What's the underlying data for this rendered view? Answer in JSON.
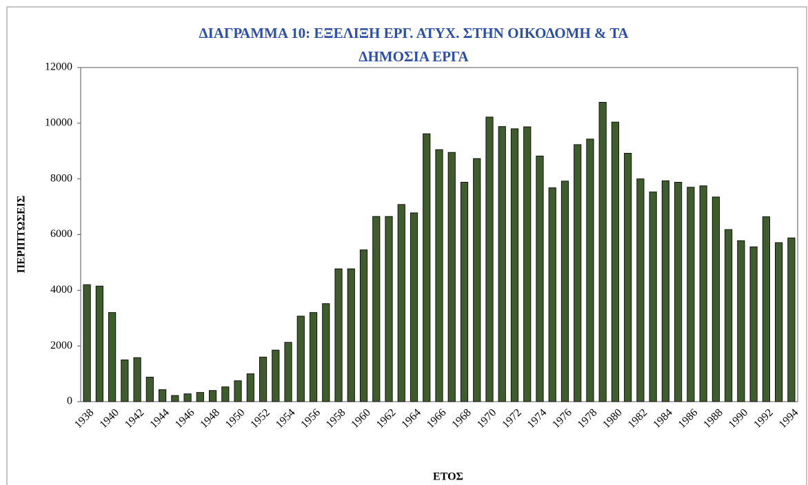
{
  "chart_data": {
    "type": "bar",
    "title": [
      "ΔΙΑΓΡΑΜΜΑ 10: ΕΞΕΛΙΞΗ ΕΡΓ. ΑΤΥΧ. ΣΤΗΝ ΟΙΚΟΔΟΜΗ & ΤΑ",
      "ΔΗΜΟΣΙΑ ΕΡΓΑ"
    ],
    "x_label": "ΕΤΟΣ",
    "y_label": "ΠΕΡΙΠΤΩΣΕΙΣ",
    "categories": [
      "1938",
      null,
      "1940",
      null,
      "1942",
      null,
      "1944",
      null,
      "1946",
      null,
      "1948",
      null,
      "1950",
      null,
      "1952",
      null,
      "1954",
      null,
      "1956",
      null,
      "1958",
      null,
      "1960",
      null,
      "1962",
      null,
      "1964",
      null,
      "1966",
      null,
      "1968",
      null,
      "1970",
      null,
      "1972",
      null,
      "1974",
      null,
      "1976",
      null,
      "1978",
      null,
      "1980",
      null,
      "1982",
      null,
      "1984",
      null,
      "1986",
      null,
      "1988",
      null,
      "1990",
      null,
      "1992",
      null,
      "1994"
    ],
    "values": [
      4200,
      4150,
      3200,
      1500,
      1580,
      880,
      430,
      220,
      280,
      330,
      400,
      530,
      750,
      1000,
      1600,
      1850,
      2130,
      3070,
      3200,
      3520,
      4770,
      4770,
      5450,
      6650,
      6650,
      7080,
      6780,
      9620,
      9050,
      8950,
      7880,
      8730,
      10220,
      9880,
      9800,
      9870,
      8820,
      7680,
      7920,
      9230,
      9430,
      10750,
      10040,
      8920,
      8000,
      7530,
      7930,
      7880,
      7700,
      7750,
      7350,
      6180,
      5780,
      5560,
      6640,
      5710,
      5880
    ],
    "color": "#3f5c2c",
    "ylim": [
      0,
      12000
    ],
    "yticks": [
      0,
      2000,
      4000,
      6000,
      8000,
      10000,
      12000
    ],
    "grid": false
  }
}
